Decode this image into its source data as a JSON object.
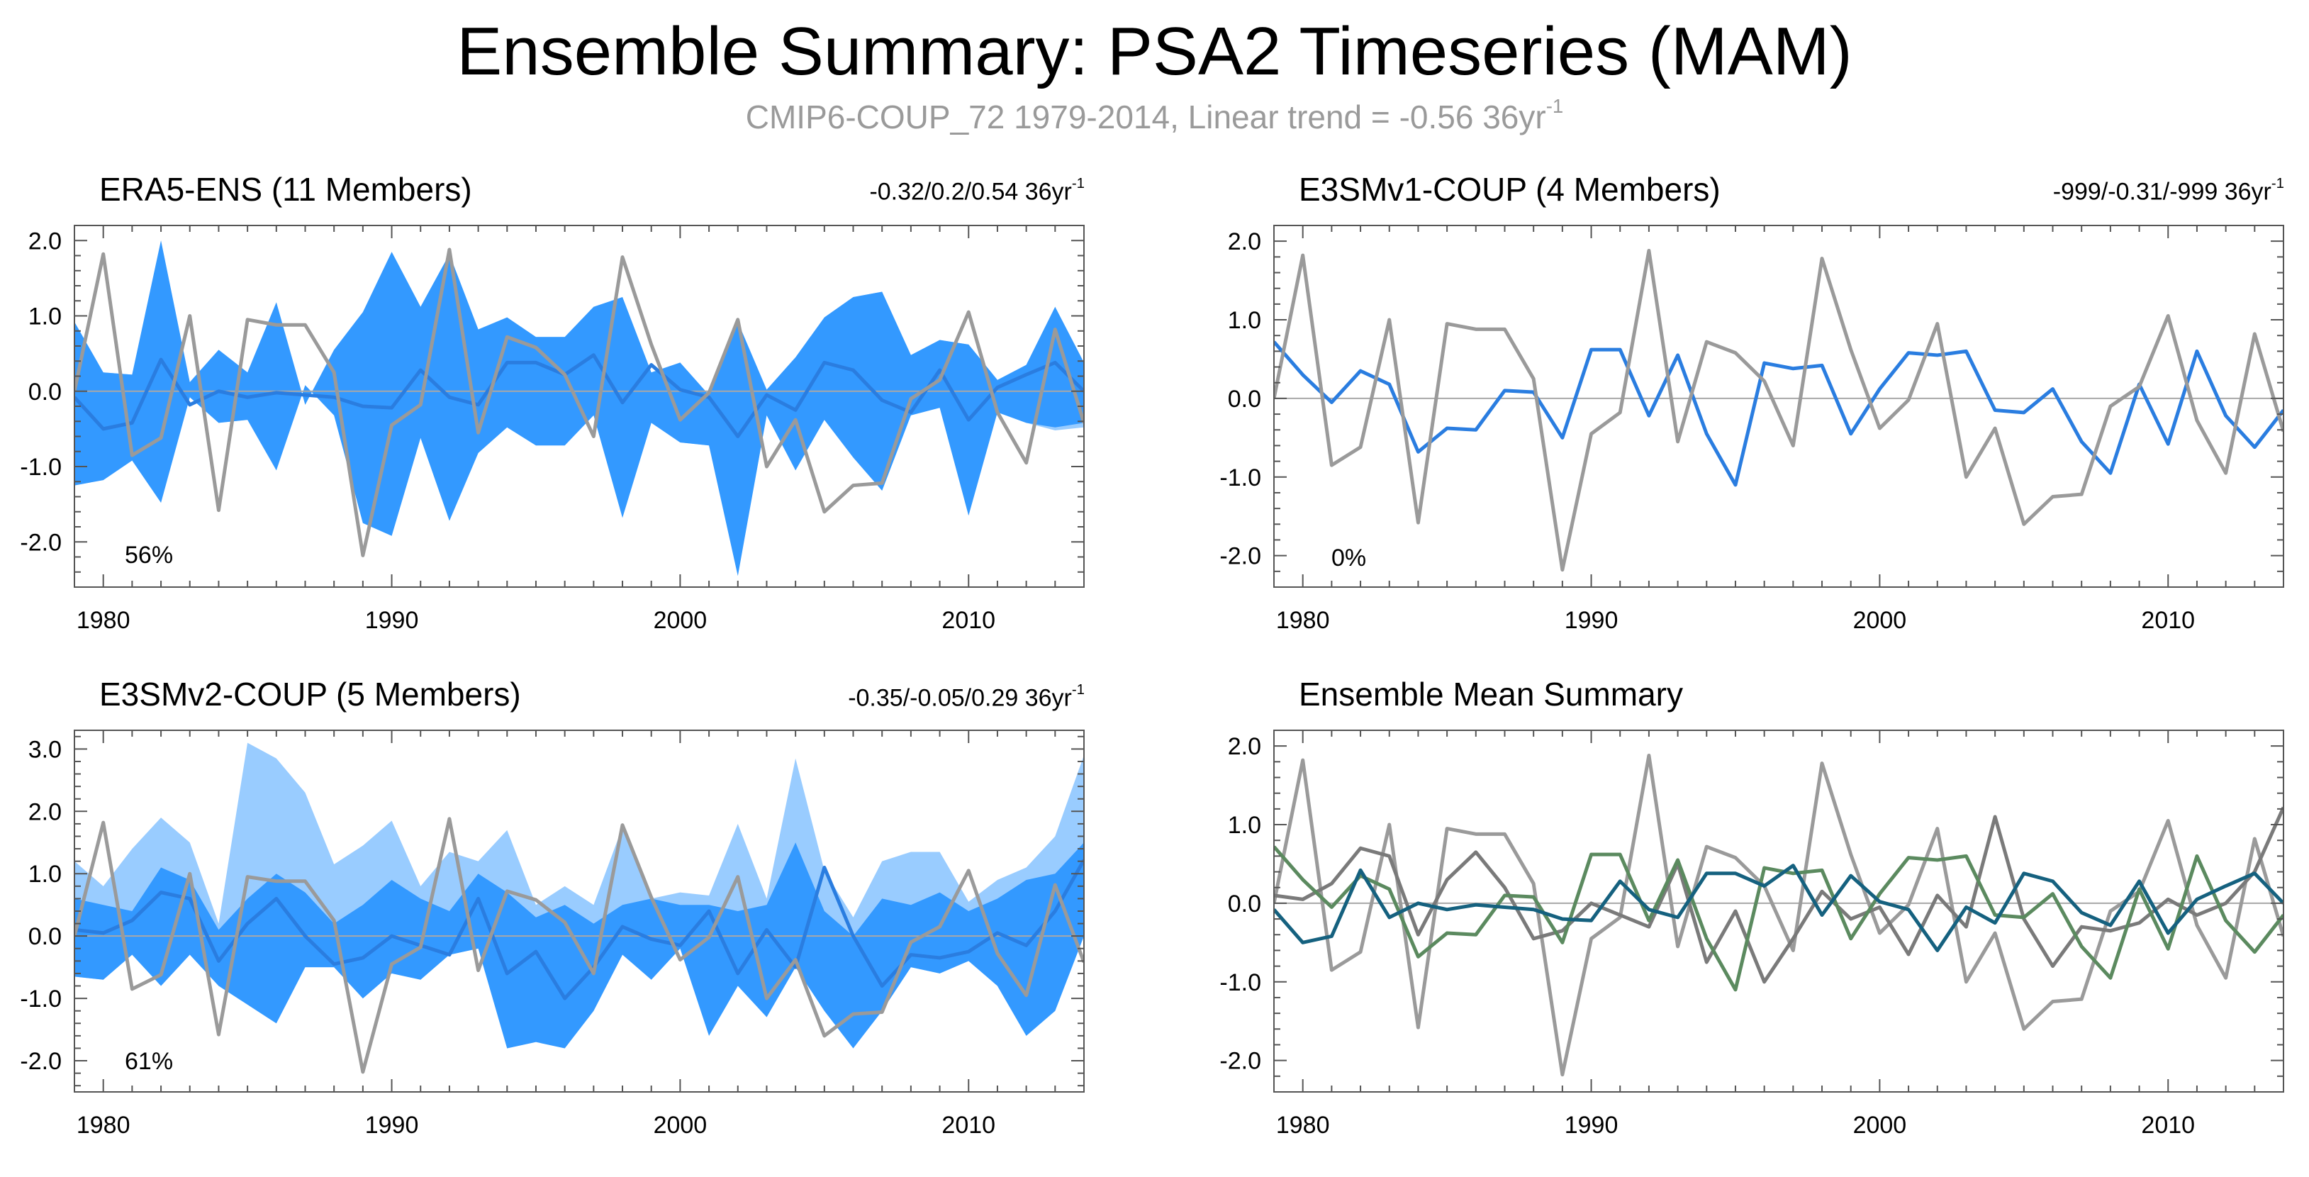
{
  "title": "Ensemble Summary: PSA2 Timeseries (MAM)",
  "subtitle": "CMIP6-COUP_72 1979-2014, Linear trend = -0.56 36yr",
  "subtitle_sup": "-1",
  "colors": {
    "era5": "#15617f",
    "e3sm1": "#5b8a5f",
    "e3sm2": "#8a8a8a",
    "obs_gray": "#9a9a9a",
    "band_dark": "#3399ff",
    "band_light": "#99ccff",
    "mean_line": "#2a7de0"
  },
  "chart_data": [
    {
      "id": "p1",
      "type": "line",
      "title": "ERA5-ENS (11 Members)",
      "title_color": "#15617f",
      "trend_text": "-0.32/0.2/0.54 36yr",
      "trend_sup": "-1",
      "percent": "56%",
      "xlim": [
        1979,
        2014
      ],
      "ylim": [
        -2.6,
        2.2
      ],
      "yticks": [
        -2.0,
        -1.0,
        0.0,
        1.0,
        2.0
      ],
      "ytick_labels": [
        "-2.0",
        "-1.0",
        "0.0",
        "1.0",
        "2.0"
      ],
      "xticks": [
        1980,
        1990,
        2000,
        2010
      ],
      "xtick_labels": [
        "1980",
        "1990",
        "2000",
        "2010"
      ],
      "x_start": 1979,
      "band_light_lower": [
        -1.25,
        -1.18,
        -0.92,
        -1.48,
        -0.08,
        -0.42,
        -0.38,
        -1.05,
        0.08,
        -0.32,
        -1.75,
        -1.92,
        -0.62,
        -1.72,
        -0.82,
        -0.48,
        -0.72,
        -0.72,
        -0.32,
        -1.68,
        -0.42,
        -0.68,
        -0.72,
        -2.45,
        -0.32,
        -1.05,
        -0.38,
        -0.88,
        -1.32,
        -0.32,
        -0.22,
        -1.65,
        -0.28,
        -0.42,
        -0.52,
        -0.48
      ],
      "band_light_upper": [
        0.92,
        0.25,
        0.22,
        2.0,
        0.12,
        0.55,
        0.25,
        1.18,
        -0.18,
        0.55,
        1.05,
        1.85,
        1.12,
        1.82,
        0.82,
        0.98,
        0.72,
        0.72,
        1.12,
        1.25,
        0.25,
        0.38,
        -0.05,
        0.92,
        0.02,
        0.45,
        0.98,
        1.25,
        1.32,
        0.48,
        0.68,
        0.62,
        0.15,
        0.35,
        1.12,
        0.38
      ],
      "band_dark_lower": [
        -1.25,
        -1.18,
        -0.92,
        -1.48,
        -0.08,
        -0.42,
        -0.38,
        -1.05,
        0.08,
        -0.32,
        -1.75,
        -1.92,
        -0.62,
        -1.72,
        -0.82,
        -0.48,
        -0.72,
        -0.72,
        -0.32,
        -1.68,
        -0.42,
        -0.68,
        -0.72,
        -2.45,
        -0.32,
        -1.05,
        -0.38,
        -0.88,
        -1.32,
        -0.32,
        -0.22,
        -1.65,
        -0.28,
        -0.42,
        -0.48,
        -0.42
      ],
      "band_dark_upper": [
        0.92,
        0.25,
        0.22,
        2.0,
        0.12,
        0.55,
        0.25,
        1.18,
        -0.18,
        0.55,
        1.05,
        1.85,
        1.12,
        1.82,
        0.82,
        0.98,
        0.72,
        0.72,
        1.12,
        1.25,
        0.25,
        0.38,
        -0.05,
        0.92,
        0.02,
        0.45,
        0.98,
        1.25,
        1.32,
        0.48,
        0.68,
        0.62,
        0.15,
        0.35,
        1.12,
        0.38
      ],
      "series": [
        {
          "name": "ERA5 ensemble mean",
          "color": "#2a7de0",
          "width": 5,
          "values": [
            -0.08,
            -0.5,
            -0.42,
            0.42,
            -0.18,
            0.0,
            -0.08,
            -0.02,
            -0.05,
            -0.08,
            -0.2,
            -0.22,
            0.28,
            -0.08,
            -0.18,
            0.38,
            0.38,
            0.22,
            0.48,
            -0.15,
            0.35,
            0.02,
            -0.08,
            -0.6,
            -0.05,
            -0.25,
            0.38,
            0.28,
            -0.12,
            -0.28,
            0.28,
            -0.38,
            0.05,
            0.22,
            0.38,
            0.0
          ]
        },
        {
          "name": "Observed",
          "color": "#9a9a9a",
          "width": 5,
          "values": [
            0.0,
            1.82,
            -0.85,
            -0.62,
            1.0,
            -1.58,
            0.95,
            0.88,
            0.88,
            0.25,
            -2.18,
            -0.45,
            -0.18,
            1.88,
            -0.55,
            0.72,
            0.58,
            0.22,
            -0.6,
            1.78,
            0.62,
            -0.38,
            -0.02,
            0.95,
            -1.0,
            -0.38,
            -1.6,
            -1.25,
            -1.22,
            -0.1,
            0.15,
            1.05,
            -0.28,
            -0.95,
            0.82,
            -0.42
          ]
        }
      ]
    },
    {
      "id": "p2",
      "type": "line",
      "title": "E3SMv1-COUP (4 Members)",
      "title_color": "#5b8a5f",
      "trend_text": "-999/-0.31/-999 36yr",
      "trend_sup": "-1",
      "percent": "0%",
      "xlim": [
        1979,
        2014
      ],
      "ylim": [
        -2.4,
        2.2
      ],
      "yticks": [
        -2.0,
        -1.0,
        0.0,
        1.0,
        2.0
      ],
      "ytick_labels": [
        "-2.0",
        "-1.0",
        "0.0",
        "1.0",
        "2.0"
      ],
      "xticks": [
        1980,
        1990,
        2000,
        2010
      ],
      "xtick_labels": [
        "1980",
        "1990",
        "2000",
        "2010"
      ],
      "x_start": 1979,
      "series": [
        {
          "name": "E3SMv1 ensemble mean",
          "color": "#2a7de0",
          "width": 5,
          "values": [
            0.72,
            0.3,
            -0.05,
            0.35,
            0.18,
            -0.68,
            -0.38,
            -0.4,
            0.1,
            0.08,
            -0.5,
            0.62,
            0.62,
            -0.22,
            0.55,
            -0.45,
            -1.1,
            0.45,
            0.38,
            0.42,
            -0.45,
            0.12,
            0.58,
            0.55,
            0.6,
            -0.15,
            -0.18,
            0.12,
            -0.55,
            -0.95,
            0.18,
            -0.58,
            0.6,
            -0.22,
            -0.62,
            -0.15
          ]
        },
        {
          "name": "Observed",
          "color": "#9a9a9a",
          "width": 5,
          "values": [
            0.0,
            1.82,
            -0.85,
            -0.62,
            1.0,
            -1.58,
            0.95,
            0.88,
            0.88,
            0.25,
            -2.18,
            -0.45,
            -0.18,
            1.88,
            -0.55,
            0.72,
            0.58,
            0.22,
            -0.6,
            1.78,
            0.62,
            -0.38,
            -0.02,
            0.95,
            -1.0,
            -0.38,
            -1.6,
            -1.25,
            -1.22,
            -0.1,
            0.15,
            1.05,
            -0.28,
            -0.95,
            0.82,
            -0.42
          ]
        }
      ]
    },
    {
      "id": "p3",
      "type": "line",
      "title": "E3SMv2-COUP (5 Members)",
      "title_color": "#8a8a8a",
      "trend_text": "-0.35/-0.05/0.29 36yr",
      "trend_sup": "-1",
      "percent": "61%",
      "xlim": [
        1979,
        2014
      ],
      "ylim": [
        -2.5,
        3.3
      ],
      "yticks": [
        -2.0,
        -1.0,
        0.0,
        1.0,
        2.0,
        3.0
      ],
      "ytick_labels": [
        "-2.0",
        "-1.0",
        "0.0",
        "1.0",
        "2.0",
        "3.0"
      ],
      "xticks": [
        1980,
        1990,
        2000,
        2010
      ],
      "xtick_labels": [
        "1980",
        "1990",
        "2000",
        "2010"
      ],
      "x_start": 1979,
      "band_light_lower": [
        -0.65,
        -0.7,
        -0.3,
        -0.8,
        -0.3,
        -0.8,
        -1.1,
        -1.4,
        -0.5,
        -0.5,
        -1.0,
        -0.6,
        -0.7,
        -0.3,
        -0.2,
        -1.8,
        -1.7,
        -1.8,
        -1.2,
        -0.3,
        -0.7,
        -0.2,
        -1.6,
        -0.8,
        -1.3,
        -0.5,
        -1.2,
        -1.8,
        -1.2,
        -0.5,
        -0.6,
        -0.4,
        -0.8,
        -1.6,
        -1.2,
        0.0
      ],
      "band_light_upper": [
        1.2,
        0.8,
        1.4,
        1.9,
        1.5,
        0.2,
        3.1,
        2.85,
        2.3,
        1.15,
        1.45,
        1.85,
        0.8,
        1.35,
        1.2,
        1.7,
        0.5,
        0.8,
        0.5,
        1.75,
        0.6,
        0.7,
        0.65,
        1.8,
        0.6,
        2.85,
        1.05,
        0.3,
        1.2,
        1.35,
        1.35,
        0.55,
        0.9,
        1.1,
        1.6,
        2.9
      ],
      "band_dark_lower": [
        -0.65,
        -0.7,
        -0.3,
        -0.8,
        -0.3,
        -0.8,
        -1.1,
        -1.4,
        -0.5,
        -0.5,
        -1.0,
        -0.6,
        -0.7,
        -0.3,
        -0.2,
        -1.8,
        -1.7,
        -1.8,
        -1.2,
        -0.3,
        -0.7,
        -0.2,
        -1.6,
        -0.8,
        -1.3,
        -0.5,
        -1.2,
        -1.8,
        -1.2,
        -0.5,
        -0.6,
        -0.4,
        -0.8,
        -1.6,
        -1.2,
        0.0
      ],
      "band_dark_upper": [
        0.6,
        0.5,
        0.4,
        1.1,
        0.9,
        0.1,
        0.6,
        1.0,
        0.7,
        0.2,
        0.5,
        0.9,
        0.6,
        0.4,
        1.0,
        0.7,
        0.3,
        0.5,
        0.2,
        0.5,
        0.6,
        0.5,
        0.5,
        0.4,
        0.5,
        1.5,
        0.4,
        0.0,
        0.6,
        0.5,
        0.7,
        0.4,
        0.6,
        0.9,
        1.0,
        1.5
      ],
      "series": [
        {
          "name": "E3SMv2 ensemble mean",
          "color": "#2a7de0",
          "width": 5,
          "values": [
            0.1,
            0.05,
            0.25,
            0.7,
            0.6,
            -0.4,
            0.2,
            0.6,
            0.0,
            -0.45,
            -0.35,
            0.0,
            -0.15,
            -0.3,
            0.6,
            -0.6,
            -0.25,
            -1.0,
            -0.5,
            0.15,
            -0.05,
            -0.15,
            0.4,
            -0.6,
            0.1,
            -0.5,
            1.1,
            0.0,
            -0.8,
            -0.3,
            -0.35,
            -0.25,
            0.05,
            -0.15,
            0.4,
            1.22
          ]
        },
        {
          "name": "Observed",
          "color": "#9a9a9a",
          "width": 5,
          "values": [
            0.0,
            1.82,
            -0.85,
            -0.62,
            1.0,
            -1.58,
            0.95,
            0.88,
            0.88,
            0.25,
            -2.18,
            -0.45,
            -0.18,
            1.88,
            -0.55,
            0.72,
            0.58,
            0.22,
            -0.6,
            1.78,
            0.62,
            -0.38,
            -0.02,
            0.95,
            -1.0,
            -0.38,
            -1.6,
            -1.25,
            -1.22,
            -0.1,
            0.15,
            1.05,
            -0.28,
            -0.95,
            0.82,
            -0.42
          ]
        }
      ]
    },
    {
      "id": "p4",
      "type": "line",
      "title": "Ensemble Mean Summary",
      "title_color": "#000000",
      "xlim": [
        1979,
        2014
      ],
      "ylim": [
        -2.4,
        2.2
      ],
      "yticks": [
        -2.0,
        -1.0,
        0.0,
        1.0,
        2.0
      ],
      "ytick_labels": [
        "-2.0",
        "-1.0",
        "0.0",
        "1.0",
        "2.0"
      ],
      "xticks": [
        1980,
        1990,
        2000,
        2010
      ],
      "xtick_labels": [
        "1980",
        "1990",
        "2000",
        "2010"
      ],
      "x_start": 1979,
      "series": [
        {
          "name": "Observed",
          "color": "#9a9a9a",
          "width": 5,
          "values": [
            0.0,
            1.82,
            -0.85,
            -0.62,
            1.0,
            -1.58,
            0.95,
            0.88,
            0.88,
            0.25,
            -2.18,
            -0.45,
            -0.18,
            1.88,
            -0.55,
            0.72,
            0.58,
            0.22,
            -0.6,
            1.78,
            0.62,
            -0.38,
            -0.02,
            0.95,
            -1.0,
            -0.38,
            -1.6,
            -1.25,
            -1.22,
            -0.1,
            0.15,
            1.05,
            -0.28,
            -0.95,
            0.82,
            -0.42
          ]
        },
        {
          "name": "E3SMv2-COUP",
          "color": "#7a7a7a",
          "width": 5,
          "values": [
            0.1,
            0.05,
            0.25,
            0.7,
            0.6,
            -0.4,
            0.3,
            0.65,
            0.2,
            -0.45,
            -0.35,
            0.0,
            -0.15,
            -0.3,
            0.5,
            -0.75,
            -0.1,
            -1.0,
            -0.45,
            0.15,
            -0.2,
            -0.05,
            -0.65,
            0.1,
            -0.3,
            1.1,
            -0.2,
            -0.8,
            -0.3,
            -0.35,
            -0.25,
            0.05,
            -0.15,
            0.0,
            0.4,
            1.22
          ]
        },
        {
          "name": "E3SMv1-COUP",
          "color": "#5b8a5f",
          "width": 5,
          "values": [
            0.72,
            0.3,
            -0.05,
            0.35,
            0.18,
            -0.68,
            -0.38,
            -0.4,
            0.1,
            0.08,
            -0.5,
            0.62,
            0.62,
            -0.22,
            0.55,
            -0.45,
            -1.1,
            0.45,
            0.38,
            0.42,
            -0.45,
            0.12,
            0.58,
            0.55,
            0.6,
            -0.15,
            -0.18,
            0.12,
            -0.55,
            -0.95,
            0.18,
            -0.58,
            0.6,
            -0.22,
            -0.62,
            -0.15
          ]
        },
        {
          "name": "ERA5-ENS",
          "color": "#15617f",
          "width": 5,
          "values": [
            -0.08,
            -0.5,
            -0.42,
            0.42,
            -0.18,
            0.0,
            -0.08,
            -0.02,
            -0.05,
            -0.08,
            -0.2,
            -0.22,
            0.28,
            -0.08,
            -0.18,
            0.38,
            0.38,
            0.22,
            0.48,
            -0.15,
            0.35,
            0.02,
            -0.08,
            -0.6,
            -0.05,
            -0.25,
            0.38,
            0.28,
            -0.12,
            -0.28,
            0.28,
            -0.38,
            0.05,
            0.22,
            0.38,
            0.0
          ]
        }
      ]
    }
  ]
}
